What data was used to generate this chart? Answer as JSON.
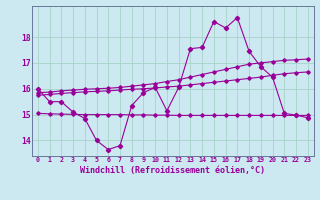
{
  "background_color": "#cce8f0",
  "grid_color": "#a8d4c8",
  "line_color": "#990099",
  "xlabel": "Windchill (Refroidissement éolien,°C)",
  "xlabel_fontsize": 6.0,
  "xtick_labels": [
    "0",
    "1",
    "2",
    "3",
    "4",
    "5",
    "6",
    "7",
    "8",
    "9",
    "10",
    "11",
    "12",
    "13",
    "14",
    "15",
    "16",
    "17",
    "18",
    "19",
    "20",
    "21",
    "22",
    "23"
  ],
  "ytick_values": [
    14,
    15,
    16,
    17,
    18
  ],
  "ylim": [
    13.4,
    19.2
  ],
  "xlim": [
    -0.5,
    23.5
  ],
  "line1_y": [
    16.0,
    15.5,
    15.5,
    15.1,
    14.85,
    14.0,
    13.65,
    13.8,
    15.35,
    15.85,
    16.05,
    15.15,
    16.05,
    17.55,
    17.6,
    18.6,
    18.35,
    18.75,
    17.45,
    16.85,
    16.45,
    15.05,
    14.98,
    14.88
  ],
  "line2_y": [
    15.85,
    15.87,
    15.92,
    15.95,
    15.98,
    16.0,
    16.02,
    16.05,
    16.1,
    16.15,
    16.2,
    16.28,
    16.35,
    16.45,
    16.55,
    16.65,
    16.75,
    16.85,
    16.95,
    17.0,
    17.05,
    17.1,
    17.12,
    17.15
  ],
  "line3_y": [
    15.75,
    15.78,
    15.82,
    15.85,
    15.88,
    15.9,
    15.92,
    15.95,
    15.98,
    16.0,
    16.03,
    16.07,
    16.1,
    16.15,
    16.2,
    16.25,
    16.3,
    16.35,
    16.4,
    16.45,
    16.52,
    16.58,
    16.62,
    16.65
  ],
  "line4_y": [
    15.05,
    15.03,
    15.02,
    15.01,
    15.0,
    15.0,
    15.0,
    15.0,
    14.99,
    14.99,
    14.98,
    14.98,
    14.97,
    14.97,
    14.97,
    14.97,
    14.97,
    14.97,
    14.97,
    14.97,
    14.97,
    14.97,
    14.97,
    14.97
  ]
}
